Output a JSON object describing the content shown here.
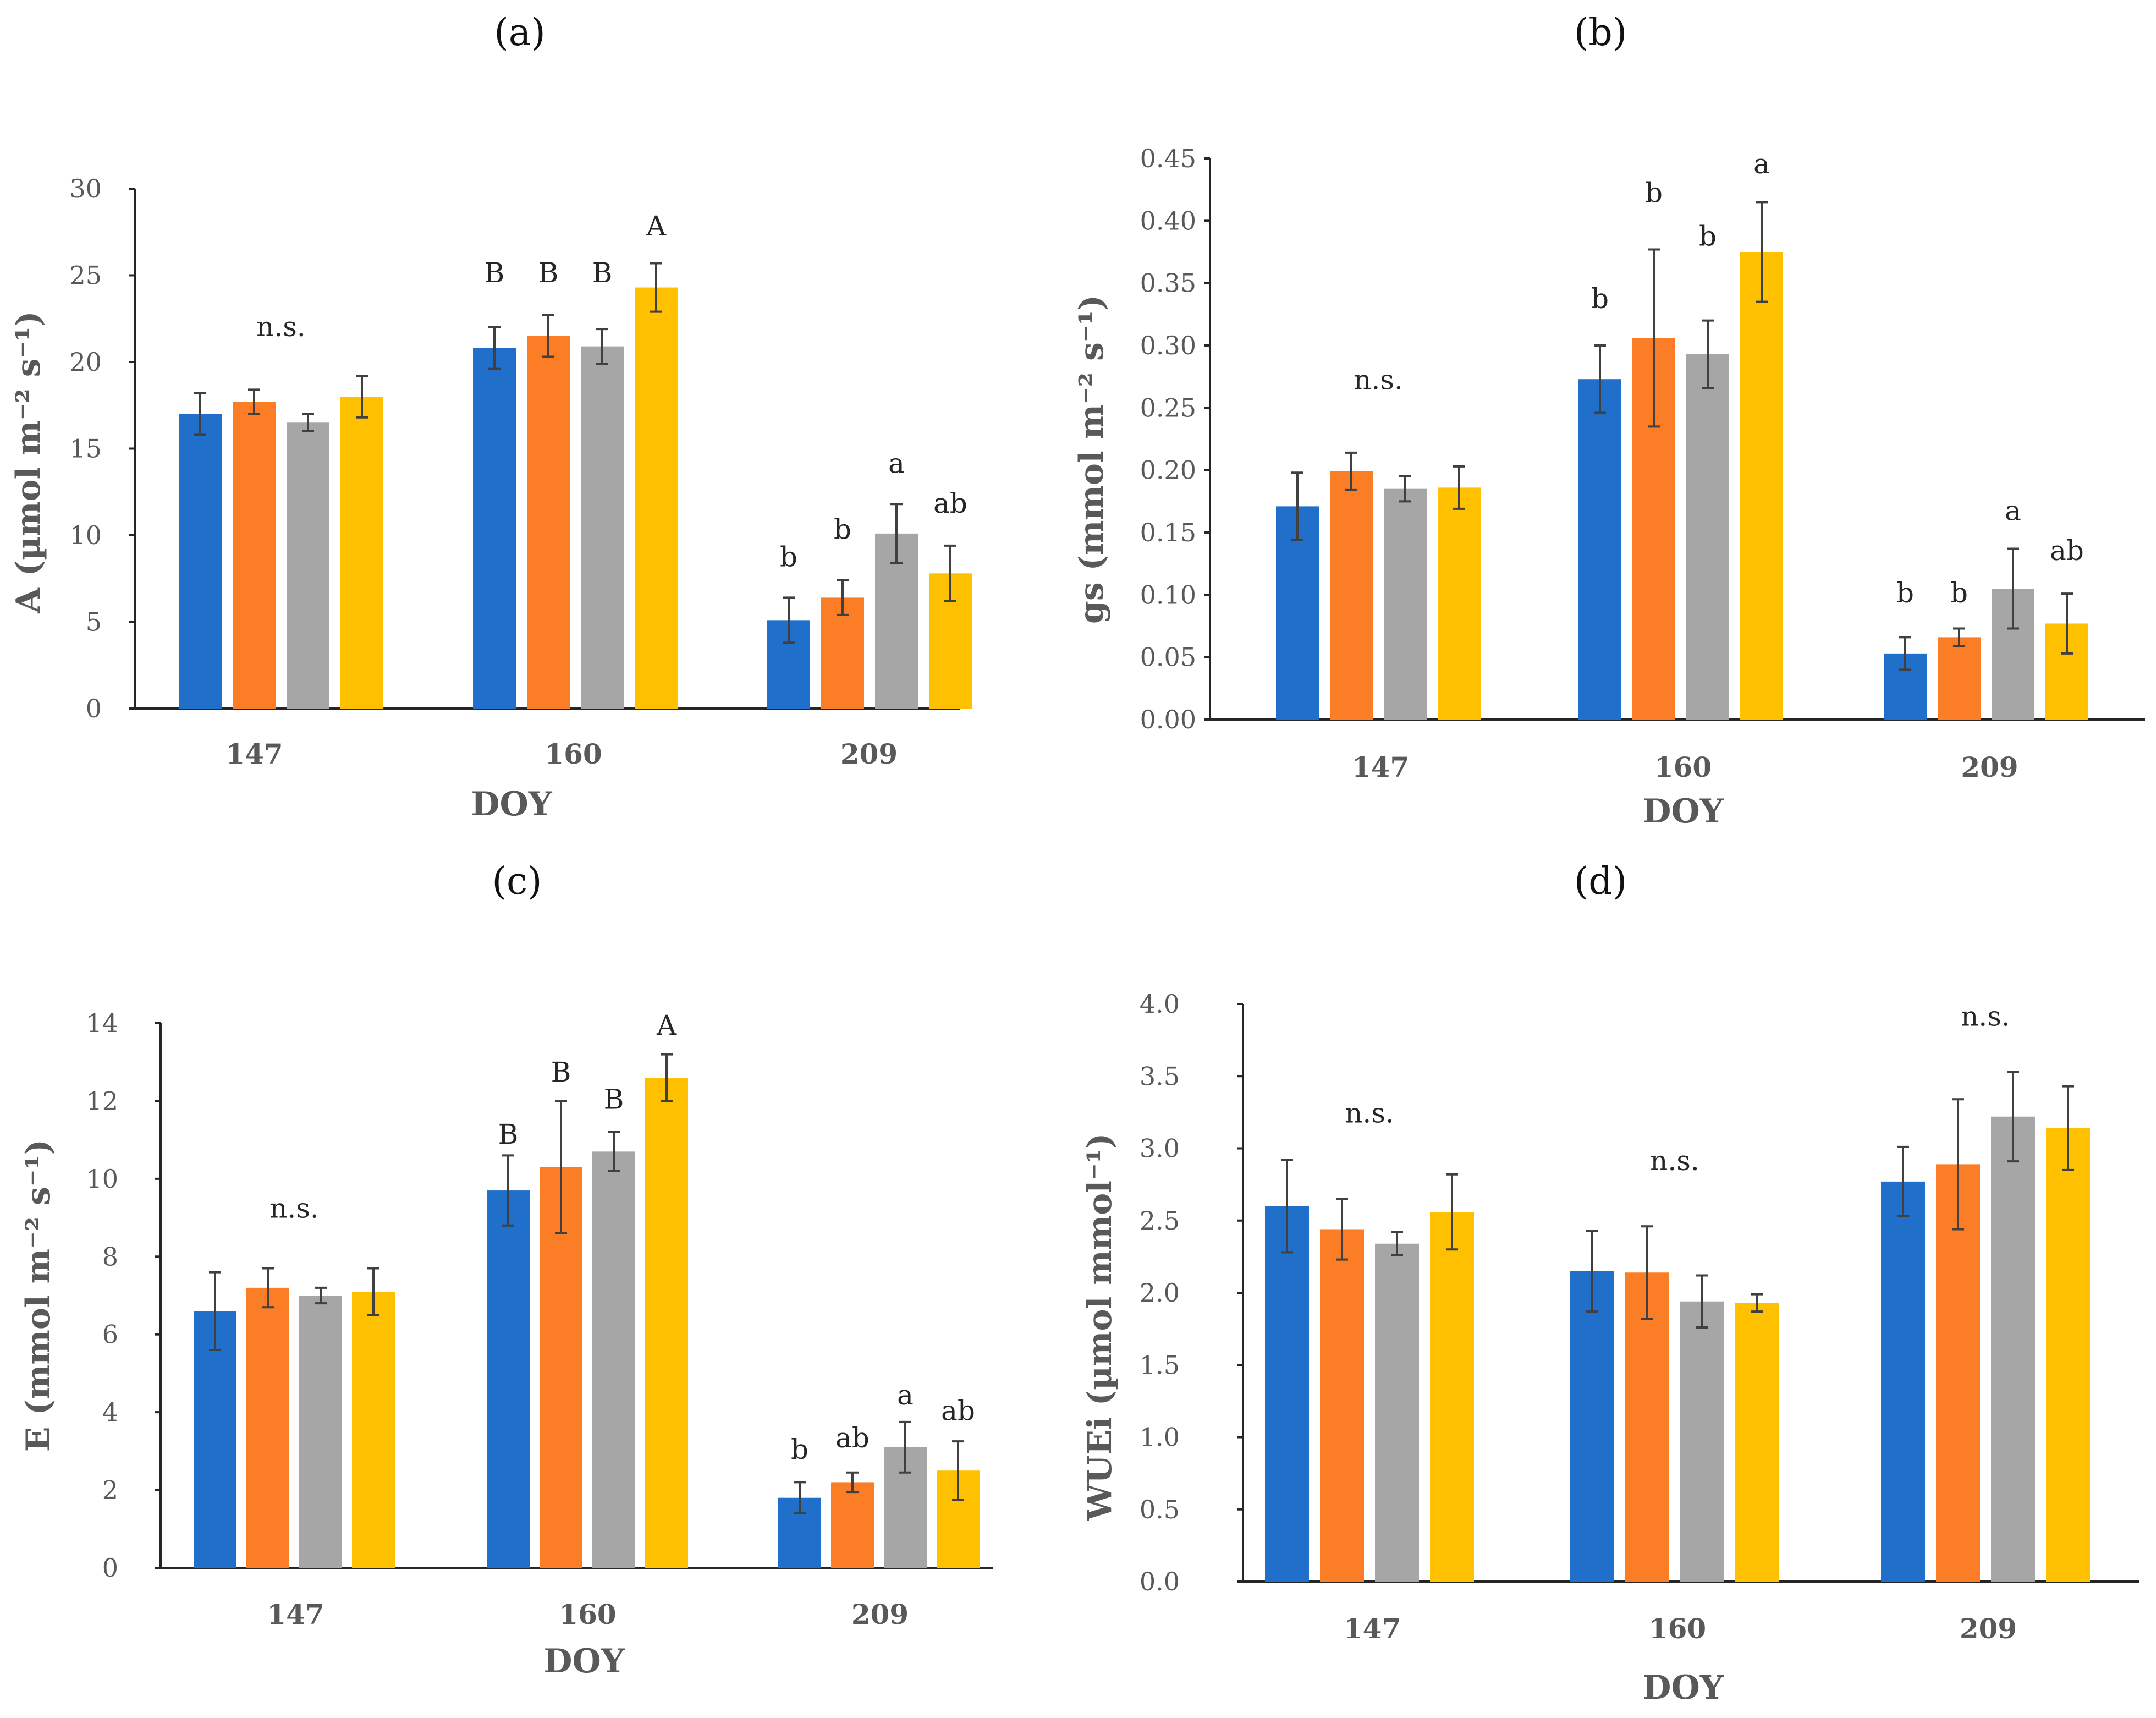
{
  "colors": {
    "series": [
      "#1f6fcb",
      "#fb7d25",
      "#a6a6a6",
      "#ffc000"
    ],
    "axis": "#262626",
    "text": "#595959"
  },
  "chart_data": [
    {
      "panel": "(a)",
      "type": "bar",
      "categories": [
        "147",
        "160",
        "209"
      ],
      "xlabel": "DOY",
      "ylabel": "A (µmol m⁻² s⁻¹)",
      "ylim": [
        0,
        30
      ],
      "yticks": [
        "0",
        "5",
        "10",
        "15",
        "20",
        "25",
        "30"
      ],
      "series": [
        {
          "name": "series 1",
          "values": [
            17.0,
            20.8,
            5.1
          ],
          "errors": [
            1.2,
            1.2,
            1.3
          ]
        },
        {
          "name": "series 2",
          "values": [
            17.7,
            21.5,
            6.4
          ],
          "errors": [
            0.7,
            1.2,
            1.0
          ]
        },
        {
          "name": "series 3",
          "values": [
            16.5,
            20.9,
            10.1
          ],
          "errors": [
            0.5,
            1.0,
            1.7
          ]
        },
        {
          "name": "series 4",
          "values": [
            18.0,
            24.3,
            7.8
          ],
          "errors": [
            1.2,
            1.4,
            1.6
          ]
        }
      ],
      "annotations": [
        {
          "text": "n.s.",
          "category": 0,
          "bar": 1.5,
          "value": 21.5
        },
        {
          "text": "B",
          "category": 1,
          "bar": 0,
          "value": 24.6
        },
        {
          "text": "B",
          "category": 1,
          "bar": 1,
          "value": 24.6
        },
        {
          "text": "B",
          "category": 1,
          "bar": 2,
          "value": 24.6
        },
        {
          "text": "A",
          "category": 1,
          "bar": 3,
          "value": 27.3
        },
        {
          "text": "b",
          "category": 2,
          "bar": 0,
          "value": 8.2
        },
        {
          "text": "b",
          "category": 2,
          "bar": 1,
          "value": 9.8
        },
        {
          "text": "a",
          "category": 2,
          "bar": 2,
          "value": 13.6
        },
        {
          "text": "ab",
          "category": 2,
          "bar": 3,
          "value": 11.3
        }
      ]
    },
    {
      "panel": "(b)",
      "type": "bar",
      "categories": [
        "147",
        "160",
        "209"
      ],
      "xlabel": "DOY",
      "ylabel": "gs (mmol m⁻² s⁻¹)",
      "ylim": [
        0,
        0.45
      ],
      "yticks": [
        "0.00",
        "0.05",
        "0.10",
        "0.15",
        "0.20",
        "0.25",
        "0.30",
        "0.35",
        "0.40",
        "0.45"
      ],
      "series": [
        {
          "name": "series 1",
          "values": [
            0.171,
            0.273,
            0.053
          ],
          "errors": [
            0.027,
            0.027,
            0.013
          ]
        },
        {
          "name": "series 2",
          "values": [
            0.199,
            0.306,
            0.066
          ],
          "errors": [
            0.015,
            0.071,
            0.007
          ]
        },
        {
          "name": "series 3",
          "values": [
            0.185,
            0.293,
            0.105
          ],
          "errors": [
            0.01,
            0.027,
            0.032
          ]
        },
        {
          "name": "series 4",
          "values": [
            0.186,
            0.375,
            0.077
          ],
          "errors": [
            0.017,
            0.04,
            0.024
          ]
        }
      ],
      "annotations": [
        {
          "text": "n.s.",
          "category": 0,
          "bar": 1.5,
          "value": 0.265
        },
        {
          "text": "b",
          "category": 1,
          "bar": 0,
          "value": 0.33
        },
        {
          "text": "b",
          "category": 1,
          "bar": 1,
          "value": 0.415
        },
        {
          "text": "b",
          "category": 1,
          "bar": 2,
          "value": 0.38
        },
        {
          "text": "a",
          "category": 1,
          "bar": 3,
          "value": 0.438
        },
        {
          "text": "b",
          "category": 2,
          "bar": 0,
          "value": 0.094
        },
        {
          "text": "b",
          "category": 2,
          "bar": 1,
          "value": 0.094
        },
        {
          "text": "a",
          "category": 2,
          "bar": 2,
          "value": 0.16
        },
        {
          "text": "ab",
          "category": 2,
          "bar": 3,
          "value": 0.128
        }
      ]
    },
    {
      "panel": "(c)",
      "type": "bar",
      "categories": [
        "147",
        "160",
        "209"
      ],
      "xlabel": "DOY",
      "ylabel": "E (mmol m⁻² s⁻¹)",
      "ylim": [
        0,
        14
      ],
      "yticks": [
        "0",
        "2",
        "4",
        "6",
        "8",
        "10",
        "12",
        "14"
      ],
      "series": [
        {
          "name": "series 1",
          "values": [
            6.6,
            9.7,
            1.8
          ],
          "errors": [
            1.0,
            0.9,
            0.4
          ]
        },
        {
          "name": "series 2",
          "values": [
            7.2,
            10.3,
            2.2
          ],
          "errors": [
            0.5,
            1.7,
            0.25
          ]
        },
        {
          "name": "series 3",
          "values": [
            7.0,
            10.7,
            3.1
          ],
          "errors": [
            0.2,
            0.5,
            0.65
          ]
        },
        {
          "name": "series 4",
          "values": [
            7.1,
            12.6,
            2.5
          ],
          "errors": [
            0.6,
            0.6,
            0.75
          ]
        }
      ],
      "annotations": [
        {
          "text": "n.s.",
          "category": 0,
          "bar": 1.5,
          "value": 9.0
        },
        {
          "text": "B",
          "category": 1,
          "bar": 0,
          "value": 10.9
        },
        {
          "text": "B",
          "category": 1,
          "bar": 1,
          "value": 12.5
        },
        {
          "text": "B",
          "category": 1,
          "bar": 2,
          "value": 11.8
        },
        {
          "text": "A",
          "category": 1,
          "bar": 3,
          "value": 13.7
        },
        {
          "text": "b",
          "category": 2,
          "bar": 0,
          "value": 2.8
        },
        {
          "text": "ab",
          "category": 2,
          "bar": 1,
          "value": 3.1
        },
        {
          "text": "a",
          "category": 2,
          "bar": 2,
          "value": 4.2
        },
        {
          "text": "ab",
          "category": 2,
          "bar": 3,
          "value": 3.8
        }
      ]
    },
    {
      "panel": "(d)",
      "type": "bar",
      "categories": [
        "147",
        "160",
        "209"
      ],
      "xlabel": "DOY",
      "ylabel": "WUEi (µmol mmol⁻¹)",
      "ylim": [
        0,
        4.0
      ],
      "yticks": [
        "0.0",
        "0.5",
        "1.0",
        "1.5",
        "2.0",
        "2.5",
        "3.0",
        "3.5",
        "4.0"
      ],
      "series": [
        {
          "name": "series 1",
          "values": [
            2.6,
            2.15,
            2.77
          ],
          "errors": [
            0.32,
            0.28,
            0.24
          ]
        },
        {
          "name": "series 2",
          "values": [
            2.44,
            2.14,
            2.89
          ],
          "errors": [
            0.21,
            0.32,
            0.45
          ]
        },
        {
          "name": "series 3",
          "values": [
            2.34,
            1.94,
            3.22
          ],
          "errors": [
            0.08,
            0.18,
            0.31
          ]
        },
        {
          "name": "series 4",
          "values": [
            2.56,
            1.93,
            3.14
          ],
          "errors": [
            0.26,
            0.06,
            0.29
          ]
        }
      ],
      "annotations": [
        {
          "text": "n.s.",
          "category": 0,
          "bar": 1.5,
          "value": 3.18
        },
        {
          "text": "n.s.",
          "category": 1,
          "bar": 1.5,
          "value": 2.85
        },
        {
          "text": "n.s.",
          "category": 2,
          "bar": 1.5,
          "value": 3.85
        }
      ]
    }
  ]
}
